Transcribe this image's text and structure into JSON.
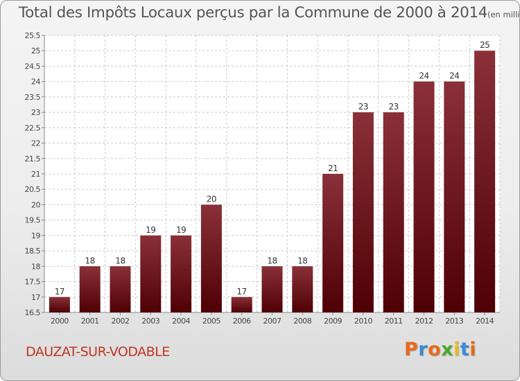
{
  "title": "Total des Impôts Locaux perçus par la Commune de 2000 à 2014",
  "unit_note": "(en milliers d'€)",
  "commune": "DAUZAT-SUR-VODABLE",
  "brand": {
    "letters": [
      "P",
      "r",
      "o",
      "x",
      "i",
      "t",
      "i"
    ],
    "colors": [
      "#e86a1a",
      "#3a8ad6",
      "#e86a1a",
      "#4aa830",
      "#e8b820",
      "#3a8ad6",
      "#e86a1a"
    ]
  },
  "colors": {
    "bar_top": "#8a3038",
    "bar_bottom": "#4e0005",
    "title": "#555555",
    "commune": "#c03520"
  },
  "chart_data": {
    "type": "bar",
    "title": "Total des Impôts Locaux perçus par la Commune de 2000 à 2014",
    "xlabel": "",
    "ylabel": "",
    "categories": [
      "2000",
      "2001",
      "2002",
      "2003",
      "2004",
      "2005",
      "2006",
      "2007",
      "2008",
      "2009",
      "2010",
      "2011",
      "2012",
      "2013",
      "2014"
    ],
    "values": [
      17,
      18,
      18,
      19,
      19,
      20,
      17,
      18,
      18,
      21,
      23,
      23,
      24,
      24,
      25
    ],
    "data_labels": [
      "17",
      "18",
      "18",
      "19",
      "19",
      "20",
      "17",
      "18",
      "18",
      "21",
      "23",
      "23",
      "24",
      "24",
      "25"
    ],
    "ylim": [
      16.5,
      25.5
    ],
    "yticks": [
      16.5,
      17,
      17.5,
      18,
      18.5,
      19,
      19.5,
      20,
      20.5,
      21,
      21.5,
      22,
      22.5,
      23,
      23.5,
      24,
      24.5,
      25,
      25.5
    ],
    "ytick_labels": [
      "16.5",
      "17",
      "17.5",
      "18",
      "18.5",
      "19",
      "19.5",
      "20",
      "20.5",
      "21",
      "21.5",
      "22",
      "22.5",
      "23",
      "23.5",
      "24",
      "24.5",
      "25",
      "25.5"
    ],
    "grid": true
  }
}
